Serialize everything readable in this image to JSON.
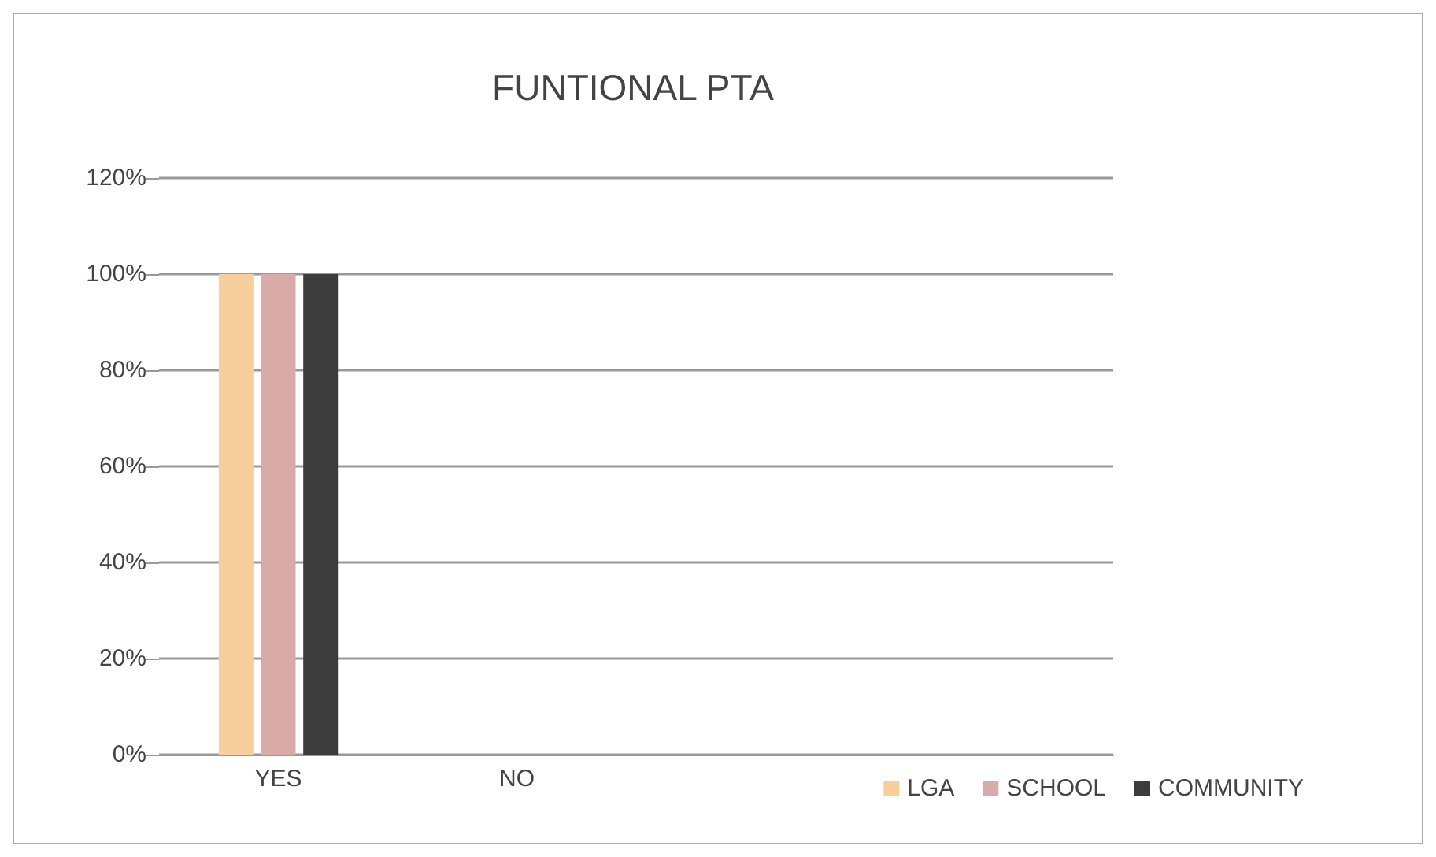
{
  "chart_data": {
    "type": "bar",
    "title": "FUNTIONAL PTA",
    "categories": [
      "YES",
      "NO",
      null,
      null
    ],
    "series": [
      {
        "name": "LGA",
        "color": "#f6cf9c",
        "values": [
          100,
          0,
          null,
          null
        ]
      },
      {
        "name": "SCHOOL",
        "color": "#d8aaa8",
        "values": [
          100,
          0,
          null,
          null
        ]
      },
      {
        "name": "COMMUNITY",
        "color": "#3c3c3c",
        "values": [
          100,
          0,
          null,
          null
        ]
      }
    ],
    "ylim": [
      0,
      120
    ],
    "yticks": [
      {
        "value": 0,
        "label": "0%"
      },
      {
        "value": 20,
        "label": "20%"
      },
      {
        "value": 40,
        "label": "40%"
      },
      {
        "value": 60,
        "label": "60%"
      },
      {
        "value": 80,
        "label": "80%"
      },
      {
        "value": 100,
        "label": "100%"
      },
      {
        "value": 120,
        "label": "120%"
      }
    ],
    "grid": "y",
    "legend": "bottom right"
  }
}
